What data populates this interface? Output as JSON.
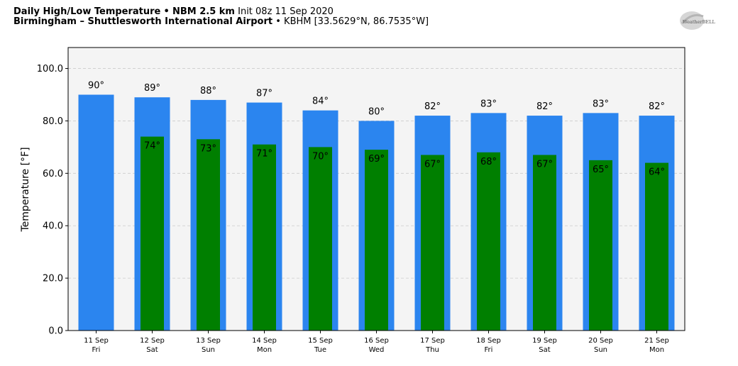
{
  "header": {
    "title": "Daily High/Low Temperature",
    "separator": "•",
    "model": "NBM 2.5 km",
    "init": "Init 08z 11 Sep 2020",
    "location": "Birmingham – Shuttlesworth International Airport",
    "station": "KBHM [33.5629°N, 86.7535°W]"
  },
  "logo": {
    "text": "WeatherBELL"
  },
  "chart_data": {
    "type": "bar",
    "ylabel": "Temperature [°F]",
    "ylim": [
      0,
      108
    ],
    "yticks": [
      "0.0",
      "20.0",
      "40.0",
      "60.0",
      "80.0",
      "100.0"
    ],
    "grid": true,
    "categories": [
      {
        "date": "11 Sep",
        "day": "Fri"
      },
      {
        "date": "12 Sep",
        "day": "Sat"
      },
      {
        "date": "13 Sep",
        "day": "Sun"
      },
      {
        "date": "14 Sep",
        "day": "Mon"
      },
      {
        "date": "15 Sep",
        "day": "Tue"
      },
      {
        "date": "16 Sep",
        "day": "Wed"
      },
      {
        "date": "17 Sep",
        "day": "Thu"
      },
      {
        "date": "18 Sep",
        "day": "Fri"
      },
      {
        "date": "19 Sep",
        "day": "Sat"
      },
      {
        "date": "20 Sep",
        "day": "Sun"
      },
      {
        "date": "21 Sep",
        "day": "Mon"
      }
    ],
    "series": [
      {
        "color": "#2b85ef",
        "values": [
          90,
          89,
          88,
          87,
          84,
          80,
          82,
          83,
          82,
          83,
          82
        ],
        "labels": [
          "90°",
          "89°",
          "88°",
          "87°",
          "84°",
          "80°",
          "82°",
          "83°",
          "82°",
          "83°",
          "82°"
        ]
      },
      {
        "color": "#007f00",
        "values": [
          null,
          74,
          73,
          71,
          70,
          69,
          67,
          68,
          67,
          65,
          64
        ],
        "labels": [
          "",
          "74°",
          "73°",
          "71°",
          "70°",
          "69°",
          "67°",
          "68°",
          "67°",
          "65°",
          "64°"
        ]
      }
    ],
    "plot_background": "#f4f4f4"
  }
}
